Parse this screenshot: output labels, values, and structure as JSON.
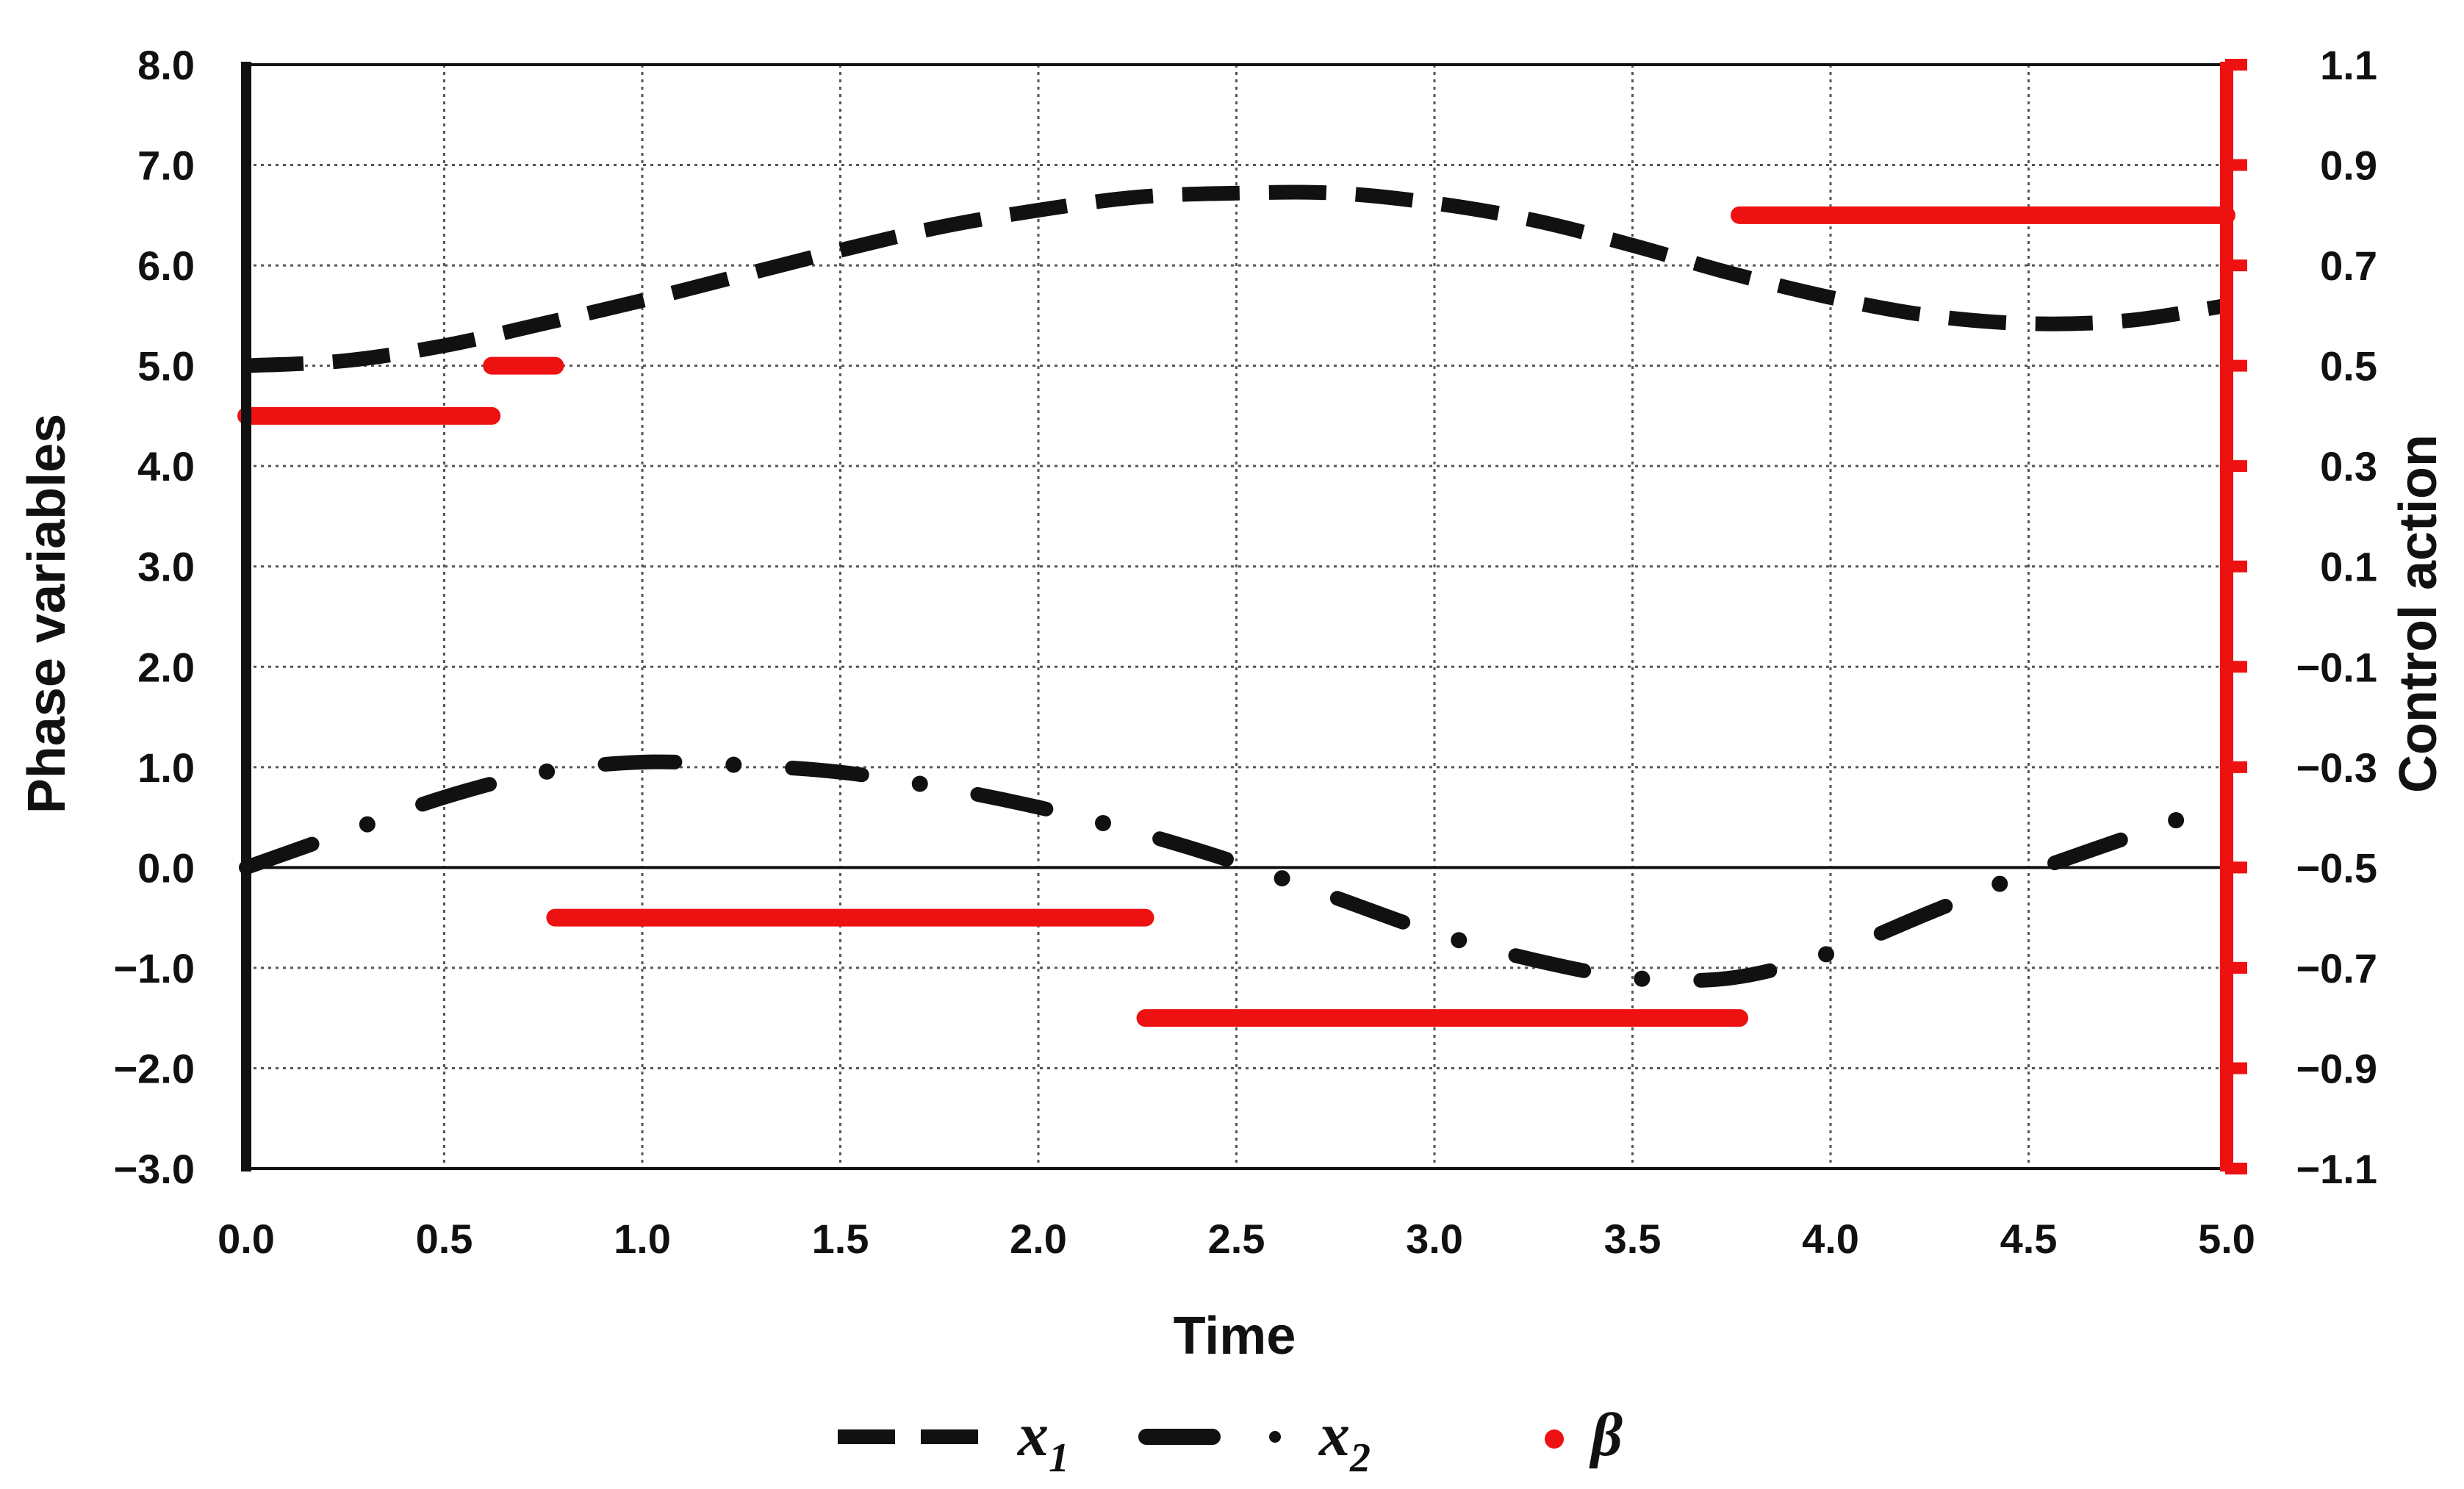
{
  "chart_data": {
    "type": "line",
    "title": "",
    "xlabel": "Time",
    "ylabel": "Phase variables",
    "y2label": "Control action",
    "xlim": [
      0.0,
      5.0
    ],
    "ylim": [
      -3.0,
      8.0
    ],
    "y2lim": [
      -1.1,
      1.1
    ],
    "grid": true,
    "legend_position": "bottom-center",
    "x_ticks": [
      "0.0",
      "0.5",
      "1.0",
      "1.5",
      "2.0",
      "2.5",
      "3.0",
      "3.5",
      "4.0",
      "4.5",
      "5.0"
    ],
    "y_ticks": [
      "8.0",
      "7.0",
      "6.0",
      "5.0",
      "4.0",
      "3.0",
      "2.0",
      "1.0",
      "0.0",
      "−1.0",
      "−2.0",
      "−3.0"
    ],
    "y2_ticks": [
      "1.1",
      "0.9",
      "0.7",
      "0.5",
      "0.3",
      "0.1",
      "−0.1",
      "−0.3",
      "−0.5",
      "−0.7",
      "−0.9",
      "−1.1"
    ],
    "series": [
      {
        "name": "x",
        "subscript": "1",
        "axis": "left",
        "style": "dashed",
        "color": "#111111",
        "x": [
          0.0,
          0.25,
          0.5,
          0.75,
          1.0,
          1.25,
          1.5,
          1.75,
          2.0,
          2.25,
          2.5,
          2.75,
          3.0,
          3.25,
          3.5,
          3.75,
          4.0,
          4.25,
          4.5,
          4.75,
          5.0
        ],
        "y": [
          5.0,
          5.05,
          5.2,
          5.42,
          5.65,
          5.9,
          6.15,
          6.38,
          6.55,
          6.68,
          6.72,
          6.72,
          6.62,
          6.45,
          6.2,
          5.92,
          5.68,
          5.5,
          5.42,
          5.45,
          5.6
        ]
      },
      {
        "name": "x",
        "subscript": "2",
        "axis": "left",
        "style": "dash-dot",
        "color": "#111111",
        "x": [
          0.0,
          0.25,
          0.5,
          0.75,
          1.0,
          1.25,
          1.5,
          1.75,
          2.0,
          2.25,
          2.5,
          2.75,
          3.0,
          3.25,
          3.5,
          3.75,
          4.0,
          4.25,
          4.5,
          4.75,
          5.0
        ],
        "y": [
          0.0,
          0.35,
          0.7,
          0.95,
          1.05,
          1.02,
          0.95,
          0.8,
          0.6,
          0.35,
          0.05,
          -0.3,
          -0.65,
          -0.92,
          -1.1,
          -1.1,
          -0.85,
          -0.45,
          -0.05,
          0.3,
          0.65
        ]
      },
      {
        "name": "β",
        "axis": "right",
        "style": "step",
        "color": "#ee1111",
        "segments": [
          {
            "x_start": 0.0,
            "x_end": 0.62,
            "value": 0.4
          },
          {
            "x_start": 0.62,
            "x_end": 0.78,
            "value": 0.5
          },
          {
            "x_start": 0.78,
            "x_end": 2.27,
            "value": -0.6
          },
          {
            "x_start": 2.27,
            "x_end": 3.77,
            "value": -0.8
          },
          {
            "x_start": 3.77,
            "x_end": 5.0,
            "value": 0.8
          }
        ]
      }
    ]
  }
}
